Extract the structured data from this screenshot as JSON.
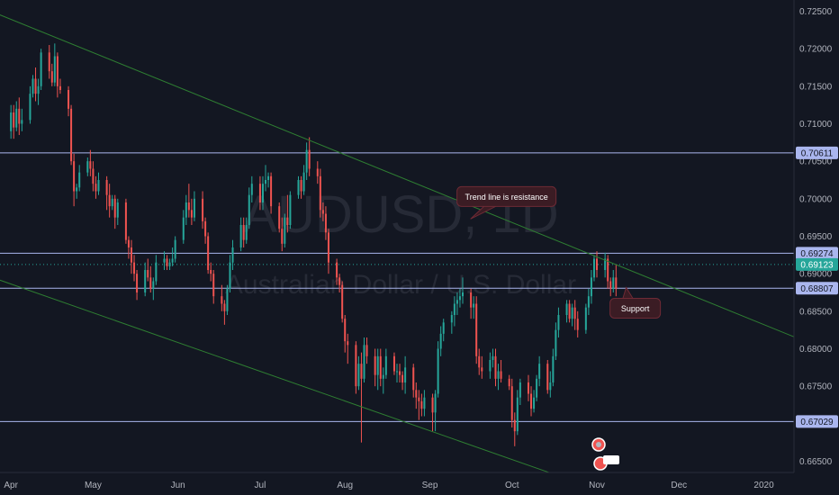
{
  "chart_data": {
    "type": "candlestick",
    "watermark": {
      "symbol": "AUDUSD, 1D",
      "description": "Australian Dollar / U.S. Dollar"
    },
    "x_axis": {
      "tick_labels": [
        "Apr",
        "May",
        "Jun",
        "Jul",
        "Aug",
        "Sep",
        "Oct",
        "Nov",
        "Dec",
        "2020"
      ],
      "range": [
        "2019-03-28",
        "2020-01-12"
      ]
    },
    "y_axis": {
      "tick_labels": [
        "0.72500",
        "0.72000",
        "0.71500",
        "0.71000",
        "0.70500",
        "0.70000",
        "0.69500",
        "0.69000",
        "0.68500",
        "0.68000",
        "0.67500",
        "0.67000",
        "0.66500"
      ],
      "range": [
        0.6635,
        0.7265
      ],
      "position": "right"
    },
    "horizontal_levels": [
      {
        "label": "0.70611",
        "value": 0.70611,
        "style": "solid"
      },
      {
        "label": "0.69274",
        "value": 0.69274,
        "style": "solid"
      },
      {
        "label": "0.69123",
        "value": 0.69123,
        "style": "dotted",
        "current_price": true
      },
      {
        "label": "0.68807",
        "value": 0.68807,
        "style": "solid"
      },
      {
        "label": "0.67029",
        "value": 0.67029,
        "style": "solid"
      }
    ],
    "trend_lines": [
      {
        "name": "descending-resistance",
        "from": [
          "2019-03-22",
          0.7254
        ],
        "to": [
          "2020-01-16",
          0.681
        ]
      },
      {
        "name": "descending-channel-lower",
        "from": [
          "2019-03-26",
          0.6894
        ],
        "to": [
          "2019-10-20",
          0.6628
        ]
      }
    ],
    "annotations": [
      {
        "text": "Trend line is resistance",
        "at": [
          "2019-09-29",
          0.7003
        ]
      },
      {
        "text": "Support",
        "at": [
          "2019-11-15",
          0.6854
        ]
      }
    ],
    "ohlc": [
      [
        "2019-04-01",
        0.709,
        0.7125,
        0.708,
        0.7115
      ],
      [
        "2019-04-02",
        0.7115,
        0.7125,
        0.708,
        0.7095
      ],
      [
        "2019-04-03",
        0.7095,
        0.713,
        0.709,
        0.712
      ],
      [
        "2019-04-04",
        0.712,
        0.7135,
        0.7085,
        0.71
      ],
      [
        "2019-04-05",
        0.71,
        0.712,
        0.709,
        0.7105
      ],
      [
        "2019-04-08",
        0.7105,
        0.715,
        0.71,
        0.714
      ],
      [
        "2019-04-09",
        0.714,
        0.7165,
        0.7135,
        0.716
      ],
      [
        "2019-04-10",
        0.716,
        0.7175,
        0.713,
        0.714
      ],
      [
        "2019-04-11",
        0.714,
        0.716,
        0.7125,
        0.715
      ],
      [
        "2019-04-12",
        0.715,
        0.72,
        0.7145,
        0.7195
      ],
      [
        "2019-04-15",
        0.7195,
        0.7205,
        0.716,
        0.717
      ],
      [
        "2019-04-16",
        0.717,
        0.718,
        0.715,
        0.7155
      ],
      [
        "2019-04-17",
        0.7155,
        0.7207,
        0.715,
        0.719
      ],
      [
        "2019-04-18",
        0.719,
        0.7195,
        0.7135,
        0.715
      ],
      [
        "2019-04-19",
        0.715,
        0.716,
        0.714,
        0.7145
      ],
      [
        "2019-04-22",
        0.7145,
        0.715,
        0.711,
        0.712
      ],
      [
        "2019-04-23",
        0.712,
        0.7125,
        0.7045,
        0.705
      ],
      [
        "2019-04-24",
        0.705,
        0.706,
        0.699,
        0.701
      ],
      [
        "2019-04-25",
        0.701,
        0.702,
        0.7,
        0.7015
      ],
      [
        "2019-04-26",
        0.7015,
        0.7045,
        0.701,
        0.7035
      ],
      [
        "2019-04-29",
        0.7035,
        0.7055,
        0.703,
        0.705
      ],
      [
        "2019-04-30",
        0.705,
        0.7065,
        0.703,
        0.704
      ],
      [
        "2019-05-01",
        0.704,
        0.705,
        0.701,
        0.702
      ],
      [
        "2019-05-02",
        0.702,
        0.703,
        0.7,
        0.701
      ],
      [
        "2019-05-03",
        0.701,
        0.7035,
        0.7005,
        0.7025
      ],
      [
        "2019-05-06",
        0.7025,
        0.703,
        0.6985,
        0.7005
      ],
      [
        "2019-05-07",
        0.7005,
        0.702,
        0.6975,
        0.699
      ],
      [
        "2019-05-08",
        0.699,
        0.7005,
        0.6985,
        0.7
      ],
      [
        "2019-05-09",
        0.7,
        0.7005,
        0.696,
        0.6975
      ],
      [
        "2019-05-10",
        0.6975,
        0.7,
        0.6965,
        0.6995
      ],
      [
        "2019-05-13",
        0.6995,
        0.7,
        0.694,
        0.6945
      ],
      [
        "2019-05-14",
        0.6945,
        0.695,
        0.692,
        0.6935
      ],
      [
        "2019-05-15",
        0.6935,
        0.6945,
        0.69,
        0.6915
      ],
      [
        "2019-05-16",
        0.6915,
        0.6925,
        0.689,
        0.69
      ],
      [
        "2019-05-17",
        0.69,
        0.6905,
        0.6865,
        0.6875
      ],
      [
        "2019-05-20",
        0.6875,
        0.6915,
        0.687,
        0.6905
      ],
      [
        "2019-05-21",
        0.6905,
        0.692,
        0.689,
        0.6895
      ],
      [
        "2019-05-22",
        0.6895,
        0.691,
        0.6875,
        0.688
      ],
      [
        "2019-05-23",
        0.688,
        0.6895,
        0.6865,
        0.689
      ],
      [
        "2019-05-24",
        0.689,
        0.6925,
        0.6885,
        0.6915
      ],
      [
        "2019-05-27",
        0.6915,
        0.693,
        0.6905,
        0.692
      ],
      [
        "2019-05-28",
        0.692,
        0.6925,
        0.6905,
        0.691
      ],
      [
        "2019-05-29",
        0.691,
        0.692,
        0.6905,
        0.6915
      ],
      [
        "2019-05-30",
        0.6915,
        0.6935,
        0.691,
        0.692
      ],
      [
        "2019-05-31",
        0.692,
        0.695,
        0.6915,
        0.6945
      ],
      [
        "2019-06-03",
        0.6945,
        0.6985,
        0.694,
        0.6975
      ],
      [
        "2019-06-04",
        0.6975,
        0.7005,
        0.6965,
        0.6995
      ],
      [
        "2019-06-05",
        0.6995,
        0.702,
        0.6975,
        0.6985
      ],
      [
        "2019-06-06",
        0.6985,
        0.7,
        0.6965,
        0.6975
      ],
      [
        "2019-06-07",
        0.6975,
        0.701,
        0.697,
        0.7
      ],
      [
        "2019-06-10",
        0.7,
        0.701,
        0.696,
        0.697
      ],
      [
        "2019-06-11",
        0.697,
        0.6975,
        0.694,
        0.695
      ],
      [
        "2019-06-12",
        0.695,
        0.6955,
        0.69,
        0.6905
      ],
      [
        "2019-06-13",
        0.6905,
        0.6915,
        0.689,
        0.69
      ],
      [
        "2019-06-14",
        0.69,
        0.6905,
        0.686,
        0.687
      ],
      [
        "2019-06-17",
        0.687,
        0.6885,
        0.685,
        0.686
      ],
      [
        "2019-06-18",
        0.686,
        0.6865,
        0.6832,
        0.685
      ],
      [
        "2019-06-19",
        0.685,
        0.6885,
        0.6845,
        0.688
      ],
      [
        "2019-06-20",
        0.688,
        0.6925,
        0.6875,
        0.6915
      ],
      [
        "2019-06-21",
        0.6915,
        0.6945,
        0.6905,
        0.6935
      ],
      [
        "2019-06-24",
        0.6935,
        0.6975,
        0.693,
        0.6965
      ],
      [
        "2019-06-25",
        0.6965,
        0.6975,
        0.6935,
        0.6945
      ],
      [
        "2019-06-26",
        0.6945,
        0.6975,
        0.694,
        0.6965
      ],
      [
        "2019-06-27",
        0.6965,
        0.7015,
        0.696,
        0.7005
      ],
      [
        "2019-06-28",
        0.7005,
        0.703,
        0.6995,
        0.702
      ],
      [
        "2019-07-01",
        0.702,
        0.703,
        0.6985,
        0.6995
      ],
      [
        "2019-07-02",
        0.6995,
        0.703,
        0.6985,
        0.702
      ],
      [
        "2019-07-03",
        0.702,
        0.7045,
        0.701,
        0.7025
      ],
      [
        "2019-07-04",
        0.7025,
        0.7035,
        0.7015,
        0.703
      ],
      [
        "2019-07-05",
        0.703,
        0.7035,
        0.698,
        0.699
      ],
      [
        "2019-07-08",
        0.699,
        0.6995,
        0.6955,
        0.696
      ],
      [
        "2019-07-09",
        0.696,
        0.6975,
        0.693,
        0.694
      ],
      [
        "2019-07-10",
        0.694,
        0.698,
        0.6935,
        0.6975
      ],
      [
        "2019-07-11",
        0.6975,
        0.7005,
        0.6955,
        0.6965
      ],
      [
        "2019-07-12",
        0.6965,
        0.701,
        0.696,
        0.7005
      ],
      [
        "2019-07-15",
        0.7005,
        0.703,
        0.7,
        0.7025
      ],
      [
        "2019-07-16",
        0.7025,
        0.703,
        0.7,
        0.701
      ],
      [
        "2019-07-17",
        0.701,
        0.7045,
        0.7005,
        0.7035
      ],
      [
        "2019-07-18",
        0.7035,
        0.7075,
        0.7025,
        0.7065
      ],
      [
        "2019-07-19",
        0.7065,
        0.7082,
        0.703,
        0.704
      ],
      [
        "2019-07-22",
        0.704,
        0.705,
        0.702,
        0.703
      ],
      [
        "2019-07-23",
        0.703,
        0.704,
        0.6975,
        0.6985
      ],
      [
        "2019-07-24",
        0.6985,
        0.6995,
        0.697,
        0.698
      ],
      [
        "2019-07-25",
        0.698,
        0.699,
        0.6945,
        0.6955
      ],
      [
        "2019-07-26",
        0.6955,
        0.696,
        0.69,
        0.6915
      ],
      [
        "2019-07-29",
        0.6915,
        0.692,
        0.6885,
        0.6895
      ],
      [
        "2019-07-30",
        0.6895,
        0.69,
        0.6875,
        0.6885
      ],
      [
        "2019-07-31",
        0.6885,
        0.689,
        0.6835,
        0.684
      ],
      [
        "2019-08-01",
        0.684,
        0.6845,
        0.6795,
        0.681
      ],
      [
        "2019-08-02",
        0.681,
        0.682,
        0.678,
        0.6805
      ],
      [
        "2019-08-05",
        0.6805,
        0.681,
        0.674,
        0.675
      ],
      [
        "2019-08-06",
        0.675,
        0.679,
        0.6745,
        0.678
      ],
      [
        "2019-08-07",
        0.678,
        0.6795,
        0.6675,
        0.676
      ],
      [
        "2019-08-08",
        0.676,
        0.6815,
        0.6755,
        0.6805
      ],
      [
        "2019-08-09",
        0.6805,
        0.6815,
        0.678,
        0.679
      ],
      [
        "2019-08-12",
        0.679,
        0.68,
        0.675,
        0.6765
      ],
      [
        "2019-08-13",
        0.6765,
        0.68,
        0.6745,
        0.679
      ],
      [
        "2019-08-14",
        0.679,
        0.68,
        0.675,
        0.676
      ],
      [
        "2019-08-15",
        0.676,
        0.6775,
        0.674,
        0.6765
      ],
      [
        "2019-08-16",
        0.6765,
        0.68,
        0.676,
        0.679
      ],
      [
        "2019-08-19",
        0.679,
        0.6795,
        0.6765,
        0.677
      ],
      [
        "2019-08-20",
        0.677,
        0.678,
        0.6755,
        0.677
      ],
      [
        "2019-08-21",
        0.677,
        0.678,
        0.6755,
        0.6765
      ],
      [
        "2019-08-22",
        0.6765,
        0.677,
        0.6745,
        0.6755
      ],
      [
        "2019-08-23",
        0.6755,
        0.679,
        0.674,
        0.6775
      ],
      [
        "2019-08-26",
        0.6775,
        0.678,
        0.6735,
        0.6745
      ],
      [
        "2019-08-27",
        0.6745,
        0.6755,
        0.672,
        0.6735
      ],
      [
        "2019-08-28",
        0.6735,
        0.6745,
        0.6705,
        0.673
      ],
      [
        "2019-08-29",
        0.673,
        0.674,
        0.671,
        0.672
      ],
      [
        "2019-08-30",
        0.672,
        0.6745,
        0.671,
        0.6735
      ],
      [
        "2019-09-02",
        0.6735,
        0.674,
        0.669,
        0.6715
      ],
      [
        "2019-09-03",
        0.6715,
        0.6745,
        0.669,
        0.674
      ],
      [
        "2019-09-04",
        0.674,
        0.681,
        0.6735,
        0.68
      ],
      [
        "2019-09-05",
        0.68,
        0.683,
        0.679,
        0.682
      ],
      [
        "2019-09-06",
        0.682,
        0.684,
        0.681,
        0.6835
      ],
      [
        "2019-09-09",
        0.6835,
        0.685,
        0.682,
        0.6845
      ],
      [
        "2019-09-10",
        0.6845,
        0.687,
        0.683,
        0.686
      ],
      [
        "2019-09-11",
        0.686,
        0.6875,
        0.6845,
        0.6865
      ],
      [
        "2019-09-12",
        0.6865,
        0.688,
        0.6855,
        0.687
      ],
      [
        "2019-09-13",
        0.687,
        0.6895,
        0.686,
        0.6875
      ],
      [
        "2019-09-16",
        0.6875,
        0.688,
        0.684,
        0.6855
      ],
      [
        "2019-09-17",
        0.6855,
        0.687,
        0.684,
        0.686
      ],
      [
        "2019-09-18",
        0.686,
        0.687,
        0.678,
        0.679
      ],
      [
        "2019-09-19",
        0.679,
        0.68,
        0.6765,
        0.6775
      ],
      [
        "2019-09-20",
        0.6775,
        0.679,
        0.676,
        0.677
      ],
      [
        "2019-09-23",
        0.677,
        0.6795,
        0.676,
        0.6785
      ],
      [
        "2019-09-24",
        0.6785,
        0.68,
        0.6775,
        0.679
      ],
      [
        "2019-09-25",
        0.679,
        0.68,
        0.675,
        0.676
      ],
      [
        "2019-09-26",
        0.676,
        0.678,
        0.6745,
        0.677
      ],
      [
        "2019-09-27",
        0.677,
        0.6785,
        0.6755,
        0.676
      ],
      [
        "2019-09-30",
        0.676,
        0.6765,
        0.6745,
        0.675
      ],
      [
        "2019-10-01",
        0.675,
        0.676,
        0.6695,
        0.6705
      ],
      [
        "2019-10-02",
        0.6705,
        0.6715,
        0.667,
        0.669
      ],
      [
        "2019-10-03",
        0.669,
        0.6745,
        0.6685,
        0.6735
      ],
      [
        "2019-10-04",
        0.6735,
        0.676,
        0.6725,
        0.6755
      ],
      [
        "2019-10-07",
        0.6755,
        0.6765,
        0.673,
        0.674
      ],
      [
        "2019-10-08",
        0.674,
        0.675,
        0.671,
        0.672
      ],
      [
        "2019-10-09",
        0.672,
        0.6745,
        0.6715,
        0.6735
      ],
      [
        "2019-10-10",
        0.6735,
        0.6765,
        0.673,
        0.676
      ],
      [
        "2019-10-11",
        0.676,
        0.679,
        0.675,
        0.678
      ],
      [
        "2019-10-14",
        0.678,
        0.6785,
        0.674,
        0.6745
      ],
      [
        "2019-10-15",
        0.6745,
        0.677,
        0.6735,
        0.6755
      ],
      [
        "2019-10-16",
        0.6755,
        0.68,
        0.675,
        0.679
      ],
      [
        "2019-10-17",
        0.679,
        0.6835,
        0.6785,
        0.6825
      ],
      [
        "2019-10-18",
        0.6825,
        0.6855,
        0.6815,
        0.6845
      ],
      [
        "2019-10-21",
        0.6845,
        0.6865,
        0.6835,
        0.686
      ],
      [
        "2019-10-22",
        0.686,
        0.6865,
        0.6835,
        0.684
      ],
      [
        "2019-10-23",
        0.684,
        0.686,
        0.683,
        0.6855
      ],
      [
        "2019-10-24",
        0.6855,
        0.6865,
        0.6825,
        0.684
      ],
      [
        "2019-10-25",
        0.684,
        0.685,
        0.6815,
        0.6825
      ],
      [
        "2019-10-28",
        0.6825,
        0.686,
        0.682,
        0.6855
      ],
      [
        "2019-10-29",
        0.6855,
        0.688,
        0.6845,
        0.687
      ],
      [
        "2019-10-30",
        0.687,
        0.6905,
        0.686,
        0.6895
      ],
      [
        "2019-10-31",
        0.6895,
        0.6925,
        0.689,
        0.692
      ],
      [
        "2019-11-01",
        0.692,
        0.693,
        0.6895,
        0.6905
      ],
      [
        "2019-11-04",
        0.6905,
        0.6928,
        0.6895,
        0.692
      ],
      [
        "2019-11-05",
        0.692,
        0.6925,
        0.688,
        0.689
      ],
      [
        "2019-11-06",
        0.689,
        0.6895,
        0.687,
        0.688
      ],
      [
        "2019-11-07",
        0.688,
        0.6905,
        0.6875,
        0.6895
      ],
      [
        "2019-11-08",
        0.6895,
        0.6912,
        0.687,
        0.688
      ]
    ],
    "colors": {
      "up": "#26a69a",
      "down": "#ef5350",
      "trend_line": "#2e7d32",
      "level_line": "#aab6ee",
      "background": "#131722",
      "axis_text": "#b2b5be",
      "annotation_bg": "#3b1c24",
      "annotation_border": "#6e2a35"
    },
    "grid": false,
    "legend": "none"
  }
}
